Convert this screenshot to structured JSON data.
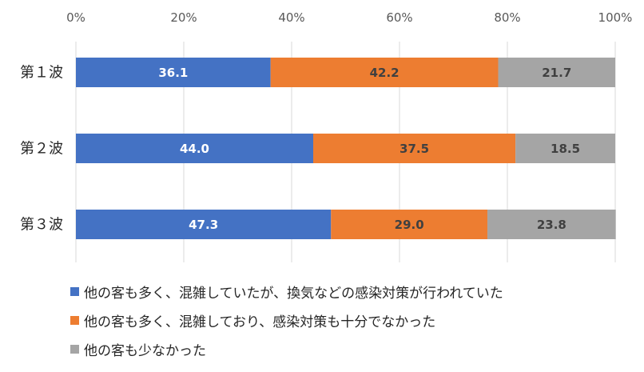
{
  "chart_data": {
    "type": "bar",
    "orientation": "horizontal",
    "stacked": true,
    "percent": true,
    "categories": [
      "第１波",
      "第２波",
      "第３波"
    ],
    "series": [
      {
        "name": "他の客も多く、混雑していたが、換気などの感染対策が行われていた",
        "color": "#4472C4",
        "label_color": "#FFFFFF",
        "values": [
          36.1,
          44.0,
          47.3
        ]
      },
      {
        "name": "他の客も多く、混雑しており、感染対策も十分でなかった",
        "color": "#ED7D31",
        "label_color": "#404040",
        "values": [
          42.2,
          37.5,
          29.0
        ]
      },
      {
        "name": "他の客も少なかった",
        "color": "#A5A5A5",
        "label_color": "#404040",
        "values": [
          21.7,
          18.5,
          23.8
        ]
      }
    ],
    "xlim": [
      0,
      100
    ],
    "xticks": [
      "0%",
      "20%",
      "40%",
      "60%",
      "80%",
      "100%"
    ],
    "grid": true,
    "legend_position": "bottom"
  }
}
